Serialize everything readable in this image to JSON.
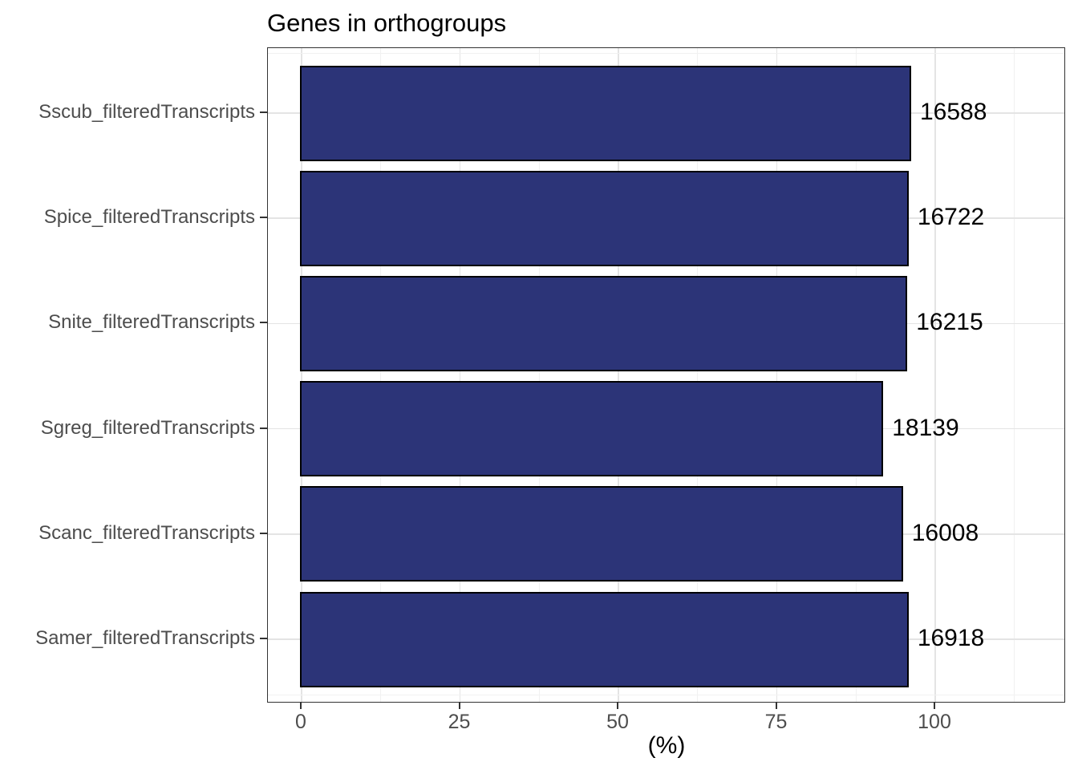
{
  "chart_data": {
    "type": "bar",
    "orientation": "horizontal",
    "title": "Genes in orthogroups",
    "xlabel": "(%)",
    "ylabel": "",
    "categories": [
      "Sscub_filteredTranscripts",
      "Spice_filteredTranscripts",
      "Snite_filteredTranscripts",
      "Sgreg_filteredTranscripts",
      "Scanc_filteredTranscripts",
      "Samer_filteredTranscripts"
    ],
    "bars": [
      {
        "category": "Sscub_filteredTranscripts",
        "percent": 96.2,
        "label": "16588"
      },
      {
        "category": "Spice_filteredTranscripts",
        "percent": 95.8,
        "label": "16722"
      },
      {
        "category": "Snite_filteredTranscripts",
        "percent": 95.6,
        "label": "16215"
      },
      {
        "category": "Sgreg_filteredTranscripts",
        "percent": 91.8,
        "label": "18139"
      },
      {
        "category": "Scanc_filteredTranscripts",
        "percent": 94.9,
        "label": "16008"
      },
      {
        "category": "Samer_filteredTranscripts",
        "percent": 95.8,
        "label": "16918"
      }
    ],
    "x_axis": {
      "label": "(%)",
      "ticks": [
        0,
        25,
        50,
        75,
        100
      ],
      "minor_ticks": [
        12.5,
        37.5,
        62.5,
        87.5,
        112.5
      ],
      "range": [
        -5,
        120.6
      ]
    },
    "grid": true,
    "legend": false,
    "colors": {
      "bar_fill": "#2C3478",
      "bar_border": "#000000",
      "panel_border": "#333333",
      "grid_major": "#E4E4E4",
      "grid_minor": "#F1F1F1",
      "axis_text": "#4D4D4D",
      "label_text": "#000000",
      "background": "#FFFFFF"
    }
  }
}
